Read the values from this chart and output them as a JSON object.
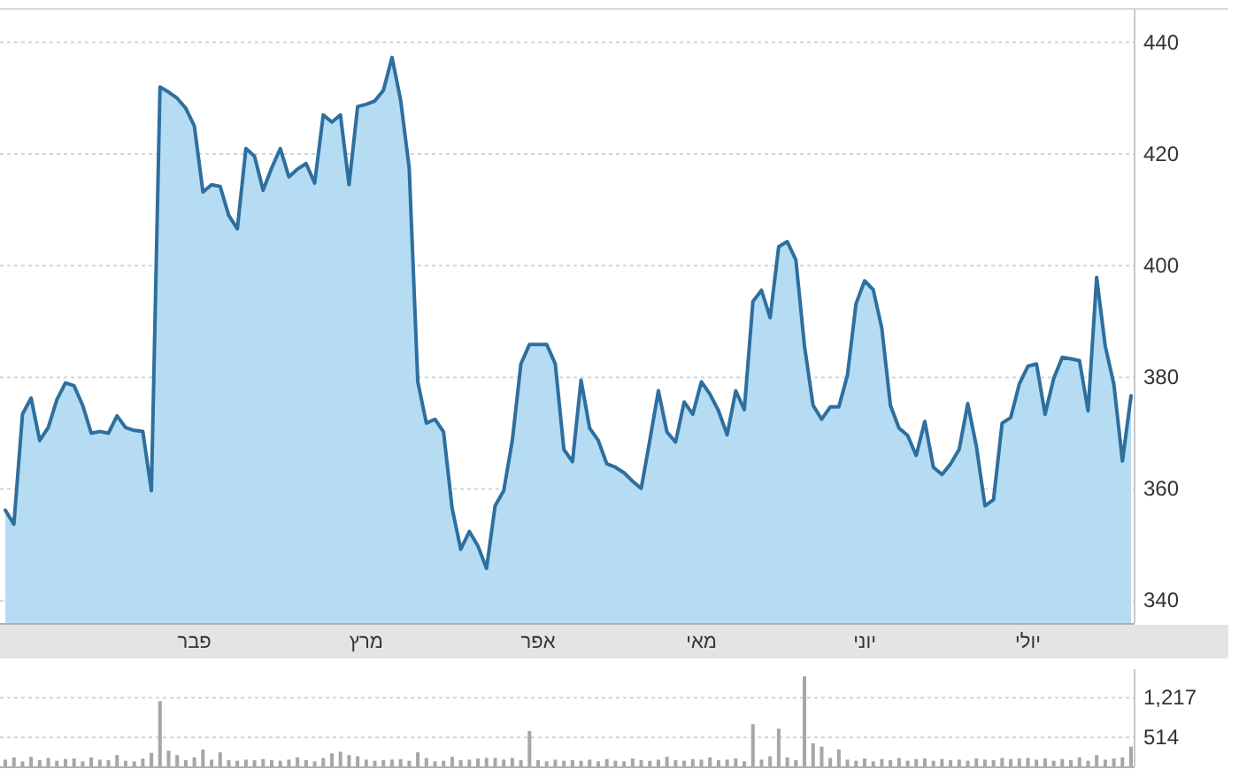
{
  "chart_data": [
    {
      "type": "area",
      "color": "#2e6f9e",
      "categories": [
        null,
        null,
        null,
        null,
        null,
        null,
        null,
        null,
        null,
        null,
        null,
        null,
        null,
        null,
        null,
        null,
        null,
        null,
        null,
        null,
        null,
        null,
        "פבר",
        null,
        null,
        null,
        null,
        null,
        null,
        null,
        null,
        null,
        null,
        null,
        null,
        null,
        null,
        null,
        null,
        null,
        null,
        null,
        "מרץ",
        null,
        null,
        null,
        null,
        null,
        null,
        null,
        null,
        null,
        null,
        null,
        null,
        null,
        null,
        null,
        null,
        null,
        null,
        null,
        "אפר",
        null,
        null,
        null,
        null,
        null,
        null,
        null,
        null,
        null,
        null,
        null,
        null,
        null,
        null,
        null,
        null,
        null,
        null,
        "מאי",
        null,
        null,
        null,
        null,
        null,
        null,
        null,
        null,
        null,
        null,
        null,
        null,
        null,
        null,
        null,
        null,
        null,
        null,
        "יוני",
        null,
        null,
        null,
        null,
        null,
        null,
        null,
        null,
        null,
        null,
        null,
        null,
        null,
        null,
        null,
        null,
        null,
        null,
        "יולי",
        null,
        null,
        null,
        null,
        null,
        null,
        null,
        null,
        null,
        null,
        null,
        null
      ],
      "values": [
        356.2,
        353.7,
        373.4,
        376.3,
        368.7,
        371,
        376,
        379,
        378.5,
        375,
        370,
        370.3,
        370,
        373.1,
        371,
        370.5,
        370.3,
        359.7,
        432,
        431.1,
        430,
        428.2,
        425,
        413.2,
        414.5,
        414.2,
        409,
        406.6,
        421,
        419.6,
        413.5,
        417.5,
        421,
        415.9,
        417.3,
        418.3,
        414.8,
        427,
        425.7,
        427,
        414.5,
        428.5,
        428.9,
        429.5,
        431.4,
        437.3,
        429.7,
        417.5,
        379.2,
        371.8,
        372.5,
        370.2,
        356.5,
        349.2,
        352.4,
        349.8,
        345.8,
        357,
        359.7,
        368.7,
        382.4,
        385.9,
        385.9,
        385.9,
        382.4,
        367.1,
        364.9,
        379.5,
        370.9,
        368.7,
        364.5,
        363.9,
        362.9,
        361.4,
        360.1,
        368.7,
        377.6,
        370.2,
        368.4,
        375.6,
        373.4,
        379.2,
        377,
        374,
        369.7,
        377.6,
        374.2,
        393.6,
        395.6,
        390.7,
        403.4,
        404.3,
        401,
        385.6,
        375,
        372.5,
        374.7,
        374.7,
        380.4,
        393.2,
        397.3,
        395.7,
        388.8,
        375,
        370.9,
        369.6,
        366,
        372.1,
        363.9,
        362.6,
        364.5,
        367.1,
        375.3,
        367.7,
        357,
        358.1,
        371.8,
        372.8,
        378.8,
        382,
        382.4,
        373.4,
        379.8,
        383.6,
        383.3,
        383,
        374,
        397.9,
        385.6,
        378.8,
        365,
        376.7
      ],
      "ylim": [
        336,
        446
      ],
      "yticks": [
        340,
        360,
        380,
        400,
        420,
        440
      ],
      "grid": "y"
    },
    {
      "type": "bar",
      "color": "#a6a6a6",
      "tick_labels": "y",
      "categories": [
        null,
        null,
        null,
        null,
        null,
        null,
        null,
        null,
        null,
        null,
        null,
        null,
        null,
        null,
        null,
        null,
        null,
        null,
        null,
        null,
        null,
        null,
        null,
        null,
        null,
        null,
        null,
        null,
        null,
        null,
        null,
        null,
        null,
        null,
        null,
        null,
        null,
        null,
        null,
        null,
        null,
        null,
        null,
        null,
        null,
        null,
        null,
        null,
        null,
        null,
        null,
        null,
        null,
        null,
        null,
        null,
        null,
        null,
        null,
        null,
        null,
        null,
        null,
        null,
        null,
        null,
        null,
        null,
        null,
        null,
        null,
        null,
        null,
        null,
        null,
        null,
        null,
        null,
        null,
        null,
        null,
        null,
        null,
        null,
        null,
        null,
        null,
        null,
        null,
        null,
        null,
        null,
        null,
        null,
        null,
        null,
        null,
        null,
        null,
        null,
        null,
        null,
        null,
        null,
        null,
        null,
        null,
        null,
        null,
        null,
        null,
        null,
        null,
        null,
        null,
        null,
        null,
        null,
        null,
        null,
        null,
        null,
        null,
        null,
        null,
        null,
        null,
        null,
        null,
        null,
        null,
        null
      ],
      "values": [
        120,
        160,
        90,
        170,
        110,
        150,
        100,
        130,
        140,
        90,
        160,
        120,
        110,
        200,
        100,
        90,
        140,
        240,
        1160,
        280,
        200,
        110,
        160,
        300,
        120,
        250,
        110,
        100,
        120,
        110,
        130,
        110,
        100,
        120,
        160,
        110,
        90,
        150,
        230,
        260,
        200,
        180,
        120,
        100,
        110,
        120,
        130,
        100,
        250,
        150,
        90,
        100,
        170,
        110,
        120,
        140,
        150,
        150,
        120,
        150,
        110,
        630,
        110,
        90,
        120,
        100,
        110,
        100,
        120,
        90,
        130,
        100,
        90,
        140,
        110,
        100,
        120,
        170,
        110,
        100,
        130,
        120,
        160,
        110,
        120,
        140,
        90,
        750,
        120,
        180,
        670,
        160,
        110,
        1600,
        410,
        350,
        150,
        300,
        120,
        100,
        140,
        90,
        130,
        110,
        150,
        100,
        130,
        140,
        100,
        130,
        110,
        120,
        100,
        140,
        120,
        110,
        150,
        130,
        140,
        150,
        120,
        140,
        100,
        130,
        110,
        160,
        100,
        200,
        120,
        140,
        160,
        350
      ],
      "ylim": [
        0,
        1730
      ],
      "yticks": [
        514,
        {
          "value": 1217,
          "label": "1,217"
        }
      ],
      "grid": "y"
    }
  ]
}
